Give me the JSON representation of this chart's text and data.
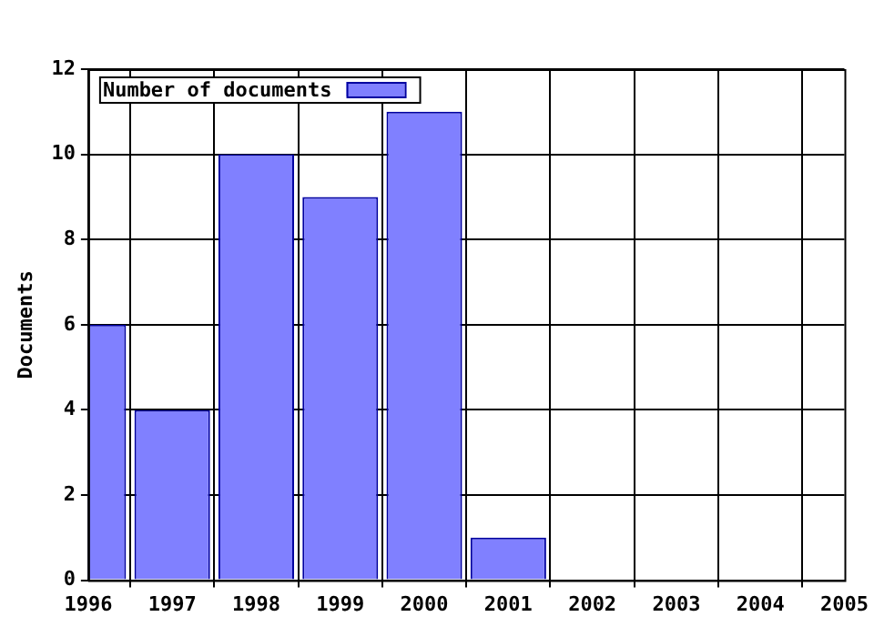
{
  "chart_data": {
    "type": "bar",
    "ylabel": "Documents",
    "x": [
      1996,
      1997,
      1998,
      1999,
      2000,
      2001
    ],
    "series": [
      {
        "name": "Number of documents",
        "color": "#8080ff",
        "values": [
          6,
          4,
          10,
          9,
          11,
          1
        ]
      }
    ],
    "xlim": [
      1996,
      2005
    ],
    "xticks": [
      1996,
      1997,
      1998,
      1999,
      2000,
      2001,
      2002,
      2003,
      2004,
      2005
    ],
    "ylim": [
      0,
      12
    ],
    "yticks": [
      0,
      2,
      4,
      6,
      8,
      10,
      12
    ],
    "grid": true,
    "legend": "top left"
  }
}
